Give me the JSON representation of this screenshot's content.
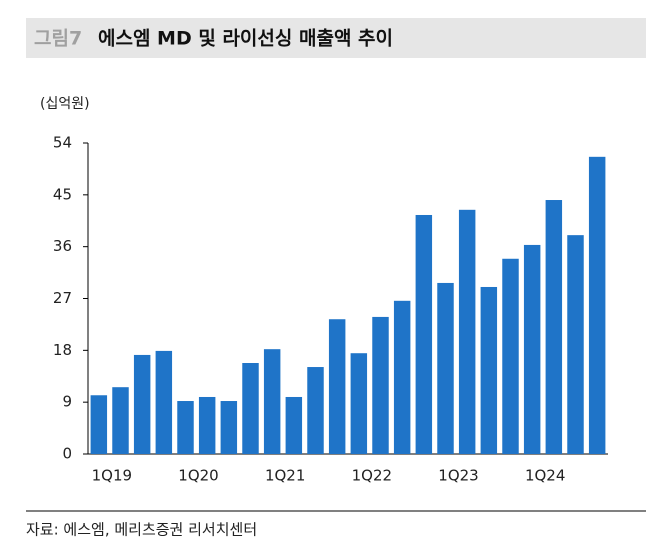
{
  "chart_data": {
    "type": "bar",
    "figure_label": "그림7",
    "title": "에스엠 MD 및 라이선싱 매출액 추이",
    "unit_label": "(십억원)",
    "source": "자료: 에스엠, 메리츠증권 리서치센터",
    "categories": [
      "1Q19",
      null,
      null,
      null,
      "1Q20",
      null,
      null,
      null,
      "1Q21",
      null,
      null,
      null,
      "1Q22",
      null,
      null,
      null,
      "1Q23",
      null,
      null,
      null,
      "1Q24",
      null,
      null,
      null
    ],
    "values": [
      10.2,
      11.6,
      17.2,
      17.9,
      9.2,
      9.9,
      9.2,
      15.8,
      18.2,
      9.9,
      15.1,
      23.4,
      17.5,
      23.8,
      26.6,
      41.5,
      29.7,
      42.4,
      29.0,
      33.9,
      36.3,
      44.1,
      38.0,
      51.6
    ],
    "color": "#1f74c8",
    "ylim": [
      0,
      54
    ],
    "yticks": [
      0,
      9,
      18,
      27,
      36,
      45,
      54
    ],
    "grid": false
  }
}
